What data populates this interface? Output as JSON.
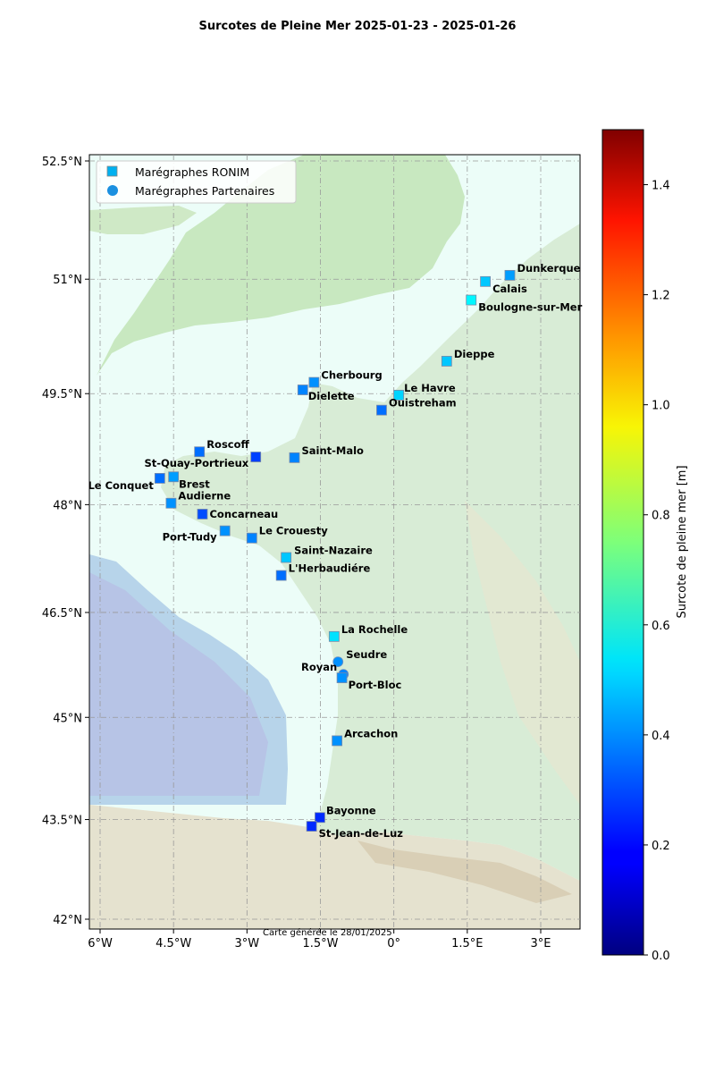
{
  "title": "Surcotes de Pleine Mer 2025-01-23 - 2025-01-26",
  "footnote": "Carte générée le 28/01/2025",
  "map": {
    "lon_range": [
      -6.3,
      3.8
    ],
    "lat_range": [
      41.9,
      52.6
    ],
    "lon_ticks": [
      {
        "value": -6,
        "label": "6°W"
      },
      {
        "value": -4.5,
        "label": "4.5°W"
      },
      {
        "value": -3,
        "label": "3°W"
      },
      {
        "value": -1.5,
        "label": "1.5°W"
      },
      {
        "value": 0,
        "label": "0°"
      },
      {
        "value": 1.5,
        "label": "1.5°E"
      },
      {
        "value": 3,
        "label": "3°E"
      }
    ],
    "lat_ticks": [
      {
        "value": 52.5,
        "label": "52.5°N"
      },
      {
        "value": 51,
        "label": "51°N"
      },
      {
        "value": 49.5,
        "label": "49.5°N"
      },
      {
        "value": 48,
        "label": "48°N"
      },
      {
        "value": 46.5,
        "label": "46.5°N"
      },
      {
        "value": 45,
        "label": "45°N"
      },
      {
        "value": 43.5,
        "label": "43.5°N"
      },
      {
        "value": 42,
        "label": "42°N"
      }
    ],
    "grid": true
  },
  "legend": {
    "placement": "top-left",
    "ronim": "Marégraphes RONIM",
    "partners": "Marégraphes Partenaires",
    "ronim_color": "#00b0f0",
    "partners_color": "#1a90e0"
  },
  "colorbar": {
    "label": "Surcote de pleine mer [m]",
    "min": 0,
    "max": 1.5,
    "ticks": [
      {
        "value": 0,
        "label": "0.0"
      },
      {
        "value": 0.2,
        "label": "0.2"
      },
      {
        "value": 0.4,
        "label": "0.4"
      },
      {
        "value": 0.6,
        "label": "0.6"
      },
      {
        "value": 0.8,
        "label": "0.8"
      },
      {
        "value": 1.0,
        "label": "1.0"
      },
      {
        "value": 1.2,
        "label": "1.2"
      },
      {
        "value": 1.4,
        "label": "1.4"
      }
    ],
    "colormap": "jet"
  },
  "chart_data": {
    "type": "scatter",
    "stations": [
      {
        "name": "Dunkerque",
        "lon": 2.37,
        "lat": 51.05,
        "value": 0.42,
        "kind": "ronim"
      },
      {
        "name": "Calais",
        "lon": 1.87,
        "lat": 50.97,
        "value": 0.48,
        "kind": "ronim"
      },
      {
        "name": "Boulogne-sur-Mer",
        "lon": 1.58,
        "lat": 50.73,
        "value": 0.55,
        "kind": "ronim"
      },
      {
        "name": "Dieppe",
        "lon": 1.08,
        "lat": 49.93,
        "value": 0.48,
        "kind": "ronim"
      },
      {
        "name": "Le Havre",
        "lon": 0.1,
        "lat": 49.48,
        "value": 0.5,
        "kind": "ronim"
      },
      {
        "name": "Ouistreham",
        "lon": -0.25,
        "lat": 49.28,
        "value": 0.35,
        "kind": "ronim"
      },
      {
        "name": "Cherbourg",
        "lon": -1.63,
        "lat": 49.65,
        "value": 0.4,
        "kind": "ronim"
      },
      {
        "name": "Dielette",
        "lon": -1.86,
        "lat": 49.55,
        "value": 0.38,
        "kind": "ronim"
      },
      {
        "name": "Saint-Malo",
        "lon": -2.03,
        "lat": 48.64,
        "value": 0.38,
        "kind": "ronim"
      },
      {
        "name": "St-Quay-Portrieux",
        "lon": -2.82,
        "lat": 48.65,
        "value": 0.28,
        "kind": "ronim"
      },
      {
        "name": "Roscoff",
        "lon": -3.97,
        "lat": 48.72,
        "value": 0.35,
        "kind": "ronim"
      },
      {
        "name": "Brest",
        "lon": -4.5,
        "lat": 48.38,
        "value": 0.42,
        "kind": "ronim"
      },
      {
        "name": "Le Conquet",
        "lon": -4.78,
        "lat": 48.36,
        "value": 0.35,
        "kind": "ronim"
      },
      {
        "name": "Audierne",
        "lon": -4.55,
        "lat": 48.02,
        "value": 0.4,
        "kind": "ronim"
      },
      {
        "name": "Concarneau",
        "lon": -3.91,
        "lat": 47.87,
        "value": 0.3,
        "kind": "ronim"
      },
      {
        "name": "Port-Tudy",
        "lon": -3.45,
        "lat": 47.64,
        "value": 0.4,
        "kind": "ronim"
      },
      {
        "name": "Le Crouesty",
        "lon": -2.9,
        "lat": 47.54,
        "value": 0.38,
        "kind": "ronim"
      },
      {
        "name": "Saint-Nazaire",
        "lon": -2.2,
        "lat": 47.27,
        "value": 0.48,
        "kind": "ronim"
      },
      {
        "name": "L'Herbaudiére",
        "lon": -2.3,
        "lat": 47.02,
        "value": 0.35,
        "kind": "ronim"
      },
      {
        "name": "La Rochelle",
        "lon": -1.22,
        "lat": 46.16,
        "value": 0.52,
        "kind": "ronim"
      },
      {
        "name": "Seudre",
        "lon": -1.14,
        "lat": 45.8,
        "value": 0.4,
        "kind": "partner"
      },
      {
        "name": "Royan",
        "lon": -1.03,
        "lat": 45.62,
        "value": 0.38,
        "kind": "partner"
      },
      {
        "name": "Port-Bloc",
        "lon": -1.06,
        "lat": 45.57,
        "value": 0.4,
        "kind": "ronim"
      },
      {
        "name": "Arcachon",
        "lon": -1.16,
        "lat": 44.66,
        "value": 0.4,
        "kind": "ronim"
      },
      {
        "name": "Bayonne",
        "lon": -1.51,
        "lat": 43.53,
        "value": 0.25,
        "kind": "ronim"
      },
      {
        "name": "St-Jean-de-Luz",
        "lon": -1.68,
        "lat": 43.4,
        "value": 0.25,
        "kind": "ronim"
      }
    ]
  }
}
